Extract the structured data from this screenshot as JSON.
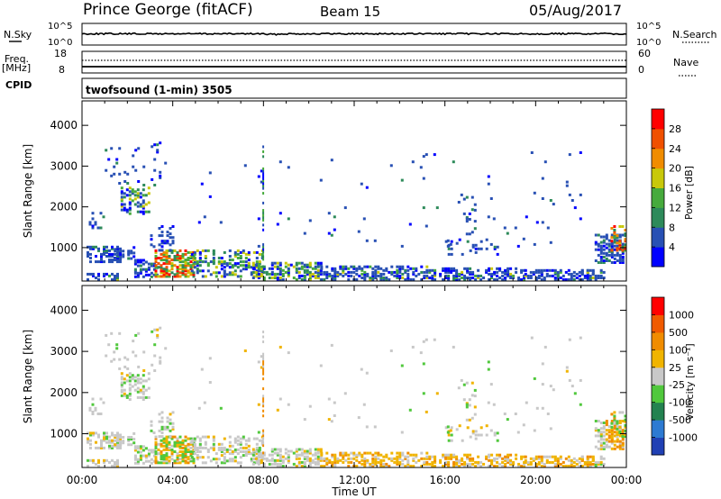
{
  "header": {
    "station": "Prince George (fitACF)",
    "beam": "Beam 15",
    "date": "05/Aug/2017"
  },
  "meta_panels": {
    "nsky_label": "N.Sky",
    "nsearch_label": "N.Search",
    "nsky_ticks": [
      "10^5",
      "10^0"
    ],
    "nsearch_ticks": [
      "10^5",
      "10^0"
    ],
    "freq_label": "Freq.",
    "freq_unit": "[MHz]",
    "freq_ticks": [
      "18",
      "8"
    ],
    "nave_label": "Nave",
    "nave_ticks": [
      "60",
      "0"
    ],
    "cpid_label": "CPID",
    "cpid_value": "twofsound (1-min) 3505"
  },
  "chart_data": [
    {
      "type": "heatmap",
      "name": "power",
      "ylabel": "Slant Range [km]",
      "yticks": [
        1000,
        2000,
        3000,
        4000
      ],
      "ylim": [
        180,
        4600
      ],
      "xlim": [
        0,
        24
      ],
      "colorbar_label": "Power [dB]",
      "colorbar_ticks": [
        "28",
        "24",
        "20",
        "16",
        "12",
        "8",
        "4"
      ],
      "colorscale": [
        "#0000ff",
        "#2850b4",
        "#2d8a5a",
        "#46aa3c",
        "#c8c80a",
        "#f08c00",
        "#f05000",
        "#ff0000"
      ]
    },
    {
      "type": "heatmap",
      "name": "velocity",
      "ylabel": "Slant Range [km]",
      "yticks": [
        1000,
        2000,
        3000,
        4000
      ],
      "ylim": [
        180,
        4600
      ],
      "xlim": [
        0,
        24
      ],
      "xticks": [
        "00:00",
        "04:00",
        "08:00",
        "12:00",
        "16:00",
        "20:00",
        "00:00"
      ],
      "xlabel": "Time UT",
      "colorbar_label": "Velocity [m s⁻¹]",
      "colorbar_ticks": [
        "1000",
        "500",
        "100",
        "25",
        "-25",
        "-100",
        "-500",
        "-1000"
      ],
      "colorscale": [
        "#2040b4",
        "#2d7ad2",
        "#238250",
        "#50c83c",
        "#c8c8c8",
        "#f0b400",
        "#f08c00",
        "#f05a00",
        "#ff0000"
      ]
    }
  ]
}
